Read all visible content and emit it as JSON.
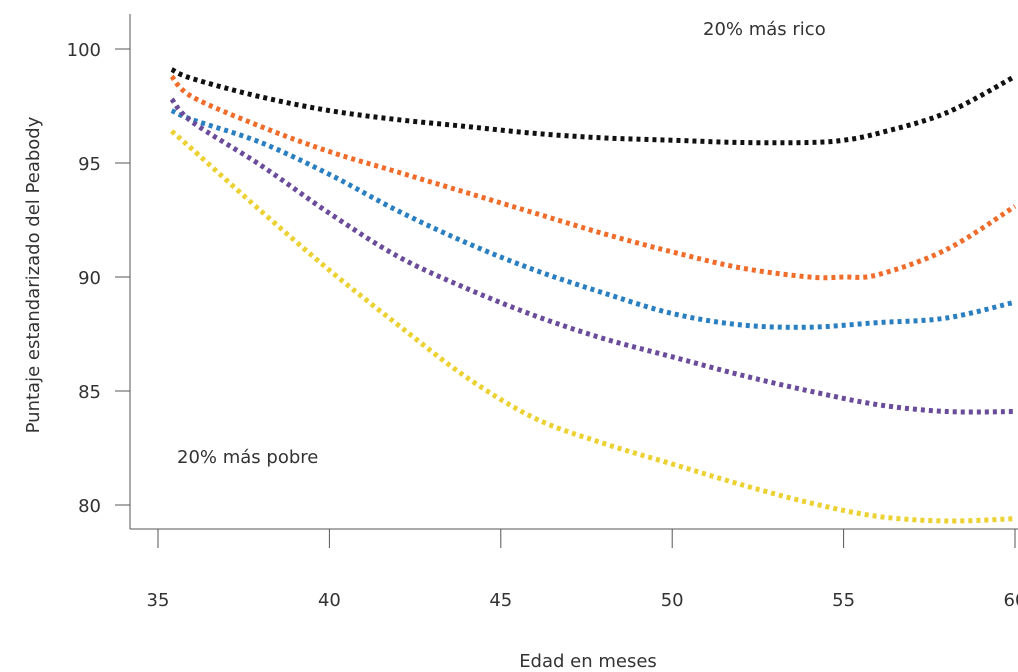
{
  "chart_data": {
    "type": "line",
    "title": "",
    "xlabel": "Edad en meses",
    "ylabel": "Puntaje estandarizado del Peabody",
    "xlim": [
      35,
      60
    ],
    "ylim": [
      79,
      101.5
    ],
    "xticks": [
      35,
      40,
      45,
      50,
      55,
      60
    ],
    "xtick_labels": [
      "35",
      "40",
      "45",
      "50",
      "55",
      "60"
    ],
    "yticks": [
      80,
      85,
      90,
      95,
      100
    ],
    "ytick_labels": [
      "80",
      "85",
      "90",
      "95",
      "100"
    ],
    "grid": false,
    "annotations": [
      {
        "text": "20% más rico"
      },
      {
        "text": "20% más pobre"
      }
    ],
    "series": [
      {
        "color": "#111111",
        "x": [
          35.4,
          36,
          38,
          40,
          42,
          44,
          46,
          48,
          50,
          52,
          54,
          55,
          56,
          58,
          60
        ],
        "values": [
          99.1,
          98.7,
          97.9,
          97.3,
          96.9,
          96.6,
          96.3,
          96.1,
          96.0,
          95.9,
          95.9,
          96.0,
          96.3,
          97.2,
          98.8
        ]
      },
      {
        "color": "#ef6c2a",
        "x": [
          35.4,
          36,
          38,
          40,
          42,
          44,
          46,
          48,
          50,
          52,
          54,
          55,
          56,
          58,
          60
        ],
        "values": [
          98.8,
          97.9,
          96.6,
          95.5,
          94.6,
          93.7,
          92.8,
          91.9,
          91.1,
          90.4,
          90.0,
          90.0,
          90.1,
          91.2,
          93.1
        ]
      },
      {
        "color": "#2a7fc1",
        "x": [
          35.4,
          36,
          38,
          40,
          42,
          44,
          46,
          48,
          50,
          52,
          54,
          56,
          58,
          60
        ],
        "values": [
          97.3,
          96.9,
          95.9,
          94.5,
          92.9,
          91.5,
          90.3,
          89.3,
          88.4,
          87.9,
          87.8,
          88.0,
          88.2,
          88.9
        ]
      },
      {
        "color": "#6b4c9a",
        "x": [
          35.4,
          36,
          38,
          40,
          42,
          44,
          46,
          48,
          50,
          52,
          54,
          56,
          58,
          60
        ],
        "values": [
          97.8,
          96.8,
          94.9,
          92.8,
          90.9,
          89.5,
          88.3,
          87.3,
          86.5,
          85.7,
          85.0,
          84.4,
          84.1,
          84.1
        ]
      },
      {
        "color": "#ecd132",
        "x": [
          35.4,
          36,
          38,
          40,
          42,
          44,
          46,
          48,
          50,
          52,
          54,
          56,
          58,
          60
        ],
        "values": [
          96.4,
          95.6,
          92.9,
          90.3,
          87.9,
          85.6,
          83.8,
          82.7,
          81.8,
          80.9,
          80.1,
          79.5,
          79.3,
          79.4
        ]
      }
    ]
  }
}
